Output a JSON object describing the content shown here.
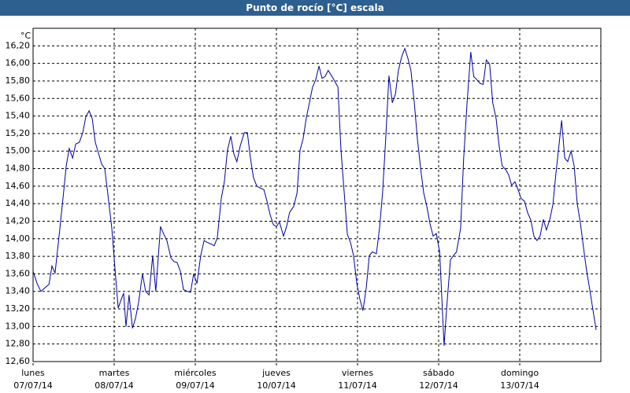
{
  "chart_data": {
    "type": "line",
    "title": "Punto de rocío [°C] escala",
    "y_label": "°C",
    "x": [
      0,
      1.2,
      2.3,
      3.5,
      4.7,
      5.6,
      6.5,
      7.7,
      8.9,
      9.8,
      10.7,
      11.7,
      12.6,
      13.7,
      14.7,
      15.6,
      16.6,
      17.5,
      18.4,
      19.4,
      20.3,
      21.2,
      22.1,
      23.3,
      24.2,
      25.2,
      26.1,
      26.8,
      27.5,
      28.4,
      29.4,
      30.3,
      31.2,
      32.4,
      33.3,
      34.3,
      35.4,
      36.3,
      37.7,
      38.7,
      39.6,
      40.8,
      41.7,
      42.6,
      43.6,
      44.5,
      45.7,
      46.6,
      47.5,
      48.5,
      49.6,
      50.6,
      51.5,
      52.7,
      53.6,
      54.5,
      55.7,
      56.6,
      57.5,
      58.5,
      59.4,
      60.3,
      61.3,
      62.5,
      63.4,
      64.3,
      65.2,
      66.2,
      67.1,
      68.3,
      69.2,
      70.1,
      71.1,
      72,
      72.9,
      74.1,
      75,
      75.9,
      77.1,
      78.1,
      79,
      79.9,
      80.8,
      81.8,
      82.7,
      83.6,
      84.6,
      85.5,
      86.4,
      87.3,
      88.3,
      89.2,
      90.2,
      91.1,
      92,
      93,
      93.9,
      94.8,
      95.8,
      96.7,
      97.6,
      98.6,
      99.5,
      100.4,
      101.6,
      102.5,
      103.4,
      104.4,
      105.3,
      106.3,
      107.2,
      108.1,
      109.1,
      110,
      110.9,
      111.8,
      112.8,
      113.7,
      114.7,
      115.6,
      116.5,
      117.5,
      118.4,
      119.3,
      120.3,
      121.6,
      122.5,
      123.5,
      124.4,
      125.3,
      126.5,
      127.4,
      128.4,
      129.5,
      130.4,
      131.4,
      132.3,
      133.2,
      134.1,
      135.1,
      136,
      137,
      137.9,
      138.8,
      139.8,
      140.7,
      141.6,
      142.6,
      143.5,
      144.4,
      145.4,
      146.3,
      147.3,
      148.2,
      149.1,
      150,
      151,
      151.9,
      152.9,
      153.8,
      154.7,
      155.7,
      156.4,
      157.3,
      158.2,
      159.2,
      160.1,
      161,
      162,
      162.9,
      163.8,
      164.8,
      165.7,
      166.6
    ],
    "series": [
      {
        "name": "Punto de rocío",
        "color": "#0000a0",
        "values": [
          13.63,
          13.49,
          13.4,
          13.44,
          13.48,
          13.69,
          13.61,
          14.03,
          14.48,
          14.83,
          15.03,
          14.92,
          15.08,
          15.1,
          15.21,
          15.39,
          15.46,
          15.37,
          15.1,
          14.97,
          14.85,
          14.8,
          14.52,
          14.12,
          13.67,
          13.21,
          13.31,
          13.38,
          13,
          13.36,
          12.98,
          13.09,
          13.27,
          13.6,
          13.4,
          13.36,
          13.81,
          13.4,
          14.14,
          14.05,
          13.98,
          13.78,
          13.74,
          13.73,
          13.63,
          13.42,
          13.4,
          13.39,
          13.6,
          13.49,
          13.81,
          13.98,
          13.96,
          13.94,
          13.92,
          14.01,
          14.46,
          14.65,
          15.01,
          15.17,
          14.97,
          14.88,
          15.06,
          15.21,
          15.21,
          14.92,
          14.7,
          14.6,
          14.58,
          14.56,
          14.43,
          14.28,
          14.16,
          14.14,
          14.19,
          14.03,
          14.14,
          14.3,
          14.37,
          14.52,
          15.01,
          15.14,
          15.37,
          15.56,
          15.73,
          15.81,
          15.97,
          15.83,
          15.85,
          15.92,
          15.86,
          15.8,
          15.73,
          15.01,
          14.56,
          14.05,
          13.96,
          13.81,
          13.49,
          13.31,
          13.18,
          13.45,
          13.81,
          13.85,
          13.83,
          14.12,
          14.52,
          15.19,
          15.86,
          15.55,
          15.65,
          15.92,
          16.08,
          16.17,
          16.06,
          15.92,
          15.55,
          15.14,
          14.79,
          14.52,
          14.37,
          14.16,
          14.03,
          14.06,
          13.85,
          12.78,
          13.27,
          13.76,
          13.81,
          13.85,
          14.12,
          14.92,
          15.55,
          16.13,
          15.85,
          15.81,
          15.77,
          15.76,
          16.04,
          15.99,
          15.55,
          15.37,
          15.06,
          14.83,
          14.79,
          14.73,
          14.61,
          14.65,
          14.56,
          14.46,
          14.43,
          14.3,
          14.21,
          14.03,
          13.98,
          14.03,
          14.22,
          14.1,
          14.22,
          14.39,
          14.74,
          15.1,
          15.35,
          14.92,
          14.88,
          15,
          14.83,
          14.4,
          14.16,
          13.89,
          13.63,
          13.4,
          13.18,
          12.96
        ]
      }
    ],
    "xlim": [
      0,
      168
    ],
    "xticks": [
      {
        "value": 0,
        "label": "lunes"
      },
      {
        "value": 24,
        "label": "martes"
      },
      {
        "value": 48,
        "label": "miércoles"
      },
      {
        "value": 72,
        "label": "jueves"
      },
      {
        "value": 96,
        "label": "viernes"
      },
      {
        "value": 120,
        "label": "sábado"
      },
      {
        "value": 144,
        "label": "domingo"
      }
    ],
    "xtick_dates": [
      "07/07/14",
      "08/07/14",
      "09/07/14",
      "10/07/14",
      "11/07/14",
      "12/07/14",
      "13/07/14"
    ],
    "ylim": [
      12.6,
      16.4
    ],
    "yticks": [
      {
        "value": 12.6,
        "label": "12,60"
      },
      {
        "value": 12.8,
        "label": "12,80"
      },
      {
        "value": 13,
        "label": "13,00"
      },
      {
        "value": 13.2,
        "label": "13,20"
      },
      {
        "value": 13.4,
        "label": "13,40"
      },
      {
        "value": 13.6,
        "label": "13,60"
      },
      {
        "value": 13.8,
        "label": "13,80"
      },
      {
        "value": 14,
        "label": "14,00"
      },
      {
        "value": 14.2,
        "label": "14,20"
      },
      {
        "value": 14.4,
        "label": "14,40"
      },
      {
        "value": 14.6,
        "label": "14,60"
      },
      {
        "value": 14.8,
        "label": "14,80"
      },
      {
        "value": 15,
        "label": "15,00"
      },
      {
        "value": 15.2,
        "label": "15,20"
      },
      {
        "value": 15.4,
        "label": "15,40"
      },
      {
        "value": 15.6,
        "label": "15,60"
      },
      {
        "value": 15.8,
        "label": "15,80"
      },
      {
        "value": 16,
        "label": "16,00"
      },
      {
        "value": 16.2,
        "label": "16,20"
      }
    ],
    "grid": true
  }
}
